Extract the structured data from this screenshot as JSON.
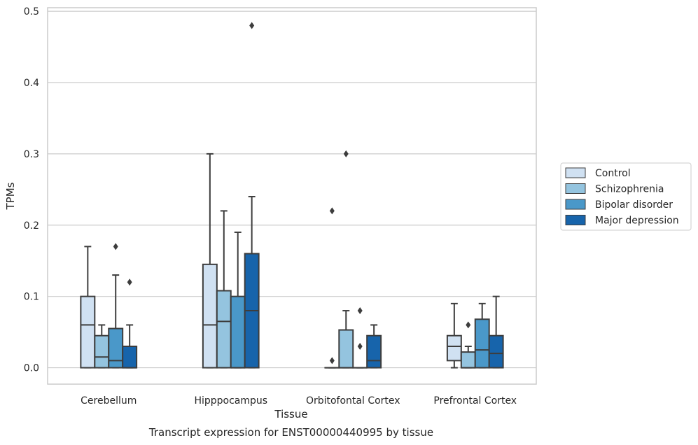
{
  "chart_data": {
    "type": "box",
    "title": "",
    "caption": "Transcript expression for ENST00000440995 by tissue",
    "xlabel": "Tissue",
    "ylabel": "TPMs",
    "ylim": [
      -0.023,
      0.505
    ],
    "yticks": [
      "0.0",
      "0.1",
      "0.2",
      "0.3",
      "0.4",
      "0.5"
    ],
    "grid": true,
    "legend_position": "right",
    "categories": [
      "Cerebellum",
      "Hipppocampus",
      "Orbitofontal Cortex",
      "Prefrontal Cortex"
    ],
    "series": [
      {
        "name": "Control",
        "color": "#d0e1f2",
        "boxes": [
          {
            "whislo": 0.0,
            "q1": 0.0,
            "med": 0.06,
            "q3": 0.1,
            "whishi": 0.17,
            "fliers": []
          },
          {
            "whislo": 0.0,
            "q1": 0.0,
            "med": 0.06,
            "q3": 0.145,
            "whishi": 0.3,
            "fliers": []
          },
          {
            "whislo": 0.0,
            "q1": 0.0,
            "med": 0.0,
            "q3": 0.0,
            "whishi": 0.0,
            "fliers": [
              0.01,
              0.22
            ]
          },
          {
            "whislo": 0.0,
            "q1": 0.01,
            "med": 0.03,
            "q3": 0.045,
            "whishi": 0.09,
            "fliers": []
          }
        ]
      },
      {
        "name": "Schizophrenia",
        "color": "#94c4df",
        "boxes": [
          {
            "whislo": 0.0,
            "q1": 0.0,
            "med": 0.015,
            "q3": 0.045,
            "whishi": 0.06,
            "fliers": []
          },
          {
            "whislo": 0.0,
            "q1": 0.0,
            "med": 0.065,
            "q3": 0.108,
            "whishi": 0.22,
            "fliers": []
          },
          {
            "whislo": 0.0,
            "q1": 0.0,
            "med": 0.0,
            "q3": 0.053,
            "whishi": 0.08,
            "fliers": [
              0.3
            ]
          },
          {
            "whislo": 0.0,
            "q1": 0.0,
            "med": 0.0,
            "q3": 0.022,
            "whishi": 0.03,
            "fliers": [
              0.06
            ]
          }
        ]
      },
      {
        "name": "Bipolar disorder",
        "color": "#4a98c9",
        "boxes": [
          {
            "whislo": 0.0,
            "q1": 0.0,
            "med": 0.01,
            "q3": 0.055,
            "whishi": 0.13,
            "fliers": [
              0.17
            ]
          },
          {
            "whislo": 0.0,
            "q1": 0.0,
            "med": 0.0,
            "q3": 0.1,
            "whishi": 0.19,
            "fliers": []
          },
          {
            "whislo": 0.0,
            "q1": 0.0,
            "med": 0.0,
            "q3": 0.0,
            "whishi": 0.0,
            "fliers": [
              0.03,
              0.08
            ]
          },
          {
            "whislo": 0.0,
            "q1": 0.0,
            "med": 0.025,
            "q3": 0.068,
            "whishi": 0.09,
            "fliers": []
          }
        ]
      },
      {
        "name": "Major depression",
        "color": "#1764ab",
        "boxes": [
          {
            "whislo": 0.0,
            "q1": 0.0,
            "med": 0.0,
            "q3": 0.03,
            "whishi": 0.06,
            "fliers": [
              0.12
            ]
          },
          {
            "whislo": 0.0,
            "q1": 0.0,
            "med": 0.08,
            "q3": 0.16,
            "whishi": 0.24,
            "fliers": [
              0.48
            ]
          },
          {
            "whislo": 0.0,
            "q1": 0.0,
            "med": 0.01,
            "q3": 0.045,
            "whishi": 0.06,
            "fliers": []
          },
          {
            "whislo": 0.0,
            "q1": 0.0,
            "med": 0.02,
            "q3": 0.045,
            "whishi": 0.1,
            "fliers": []
          }
        ]
      }
    ]
  }
}
